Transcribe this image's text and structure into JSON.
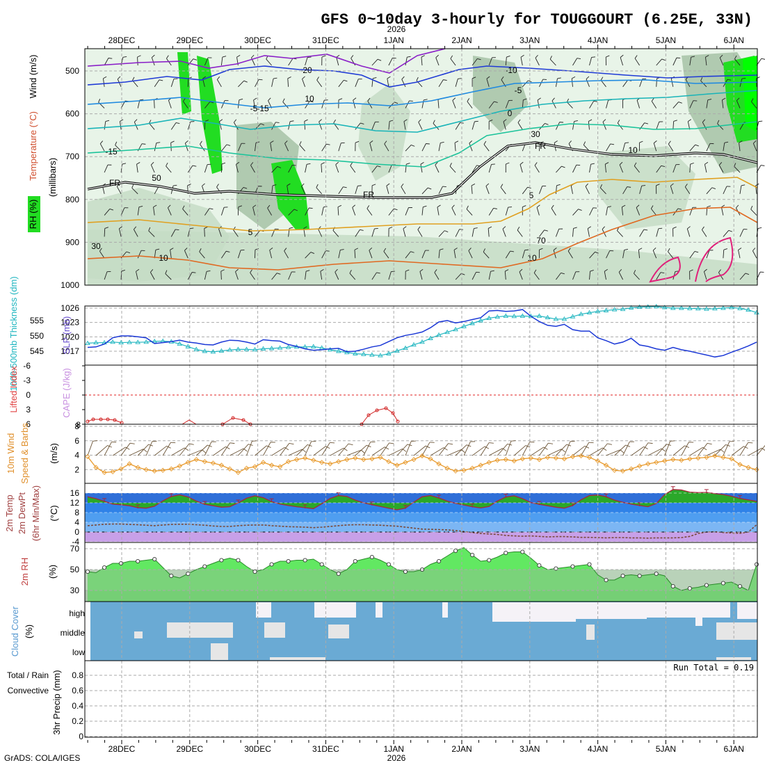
{
  "title": "GFS 0~10day 3-hourly for TOUGGOURT (6.25E, 33N)",
  "year_label": "2026",
  "footer": "GrADS: COLA/IGES",
  "colors": {
    "rh_light": "#e8f4e8",
    "rh_mid": "#c5dcc5",
    "rh_dark": "#a6c2a6",
    "rh_green": "#22dd22",
    "rh_bright": "#00ff00",
    "slp": "#1a37d6",
    "thickness": "#20b6c0",
    "wind": "#e89a2c",
    "barb": "#6b5436",
    "temp_fill": "#2aa82a",
    "temp_line": "#a8273a",
    "rh2m": "#2ee02e",
    "cloud": "#6aaad4",
    "cloud_clear": "#f5f2f7",
    "cape": "#c8a0e0",
    "li": "#d02020"
  },
  "chart_data": {
    "type": "meteogram",
    "time_axis": {
      "categories": [
        "28DEC",
        "29DEC",
        "30DEC",
        "31DEC",
        "1JAN",
        "2JAN",
        "3JAN",
        "4JAN",
        "5JAN",
        "6JAN"
      ],
      "start": "27DEC 15Z",
      "step_hours": 3,
      "points": 81
    },
    "panels": {
      "upper_air": {
        "ylabel": "(millibars)",
        "left_labels": [
          "Wind (m/s)",
          "Temperature (°C)",
          "RH (%)"
        ],
        "pressure_ticks": [
          500,
          600,
          700,
          800,
          900,
          1000
        ],
        "isotherm_labels": [
          "-20",
          "-15",
          "-10",
          "-5",
          "-15",
          "-5",
          "0",
          "5",
          "10",
          "5",
          "10"
        ],
        "freezing_label": "FR",
        "rh_labels": [
          "10",
          "30",
          "50",
          "70"
        ]
      },
      "slp_thickness": {
        "left_labels": [
          "1000-500mb Thickness (dm)",
          "SLP (mb)"
        ],
        "thickness_ticks": [
          545,
          550,
          555
        ],
        "slp_ticks": [
          1017,
          1020,
          1023,
          1026
        ],
        "slp": [
          1017.8,
          1017.9,
          1018.5,
          1019.8,
          1020.2,
          1020.2,
          1020.0,
          1019.8,
          1018.6,
          1018.8,
          1019.0,
          1019.3,
          1018.9,
          1018.7,
          1018.4,
          1018.3,
          1018.9,
          1019.3,
          1019.2,
          1018.9,
          1018.5,
          1019.4,
          1019.2,
          1019.1,
          1018.4,
          1018.0,
          1017.5,
          1017.2,
          1017.3,
          1017.5,
          1017.6,
          1016.9,
          1017.0,
          1017.4,
          1017.9,
          1018.2,
          1019.0,
          1019.8,
          1020.3,
          1020.6,
          1021.0,
          1021.9,
          1023.1,
          1023.4,
          1022.9,
          1023.2,
          1023.6,
          1024.0,
          1025.4,
          1025.5,
          1025.3,
          1025.4,
          1025.7,
          1024.3,
          1023.2,
          1022.4,
          1022.2,
          1022.6,
          1021.5,
          1021.2,
          1021.2,
          1019.8,
          1019.2,
          1018.5,
          1018.9,
          1019.7,
          1018.3,
          1018.0,
          1017.5,
          1017.2,
          1017.8,
          1017.3,
          1017.0,
          1016.6,
          1016.2,
          1015.8,
          1016.1,
          1016.8,
          1017.4,
          1018.1,
          1018.9
        ],
        "thickness": [
          547.6,
          547.8,
          547.8,
          548.0,
          547.8,
          547.9,
          547.9,
          548.0,
          548.2,
          548.3,
          548.1,
          547.4,
          546.5,
          545.6,
          545.0,
          544.8,
          545.1,
          545.4,
          545.6,
          545.6,
          545.5,
          545.8,
          545.9,
          546.1,
          546.3,
          546.4,
          546.4,
          546.5,
          546.1,
          545.5,
          545.0,
          544.6,
          544.2,
          544.0,
          543.8,
          543.6,
          544.2,
          545.1,
          546.0,
          547.1,
          548.0,
          549.2,
          550.3,
          551.2,
          552.1,
          553.1,
          554.1,
          555.0,
          555.8,
          556.2,
          556.5,
          556.4,
          556.5,
          556.4,
          556.5,
          556.0,
          555.5,
          555.5,
          556.3,
          557.1,
          557.6,
          558.0,
          558.3,
          558.6,
          558.7,
          559.2,
          559.4,
          559.5,
          559.6,
          559.3,
          559.1,
          559.1,
          559.0,
          558.9,
          558.8,
          558.9,
          559.1,
          559.3,
          559.0,
          558.5,
          557.6
        ]
      },
      "instability": {
        "left_labels": [
          "Lifted Index",
          "CAPE (J/kg)"
        ],
        "li_ticks": [
          6,
          3,
          0,
          -3,
          -6
        ],
        "cape_tick": "8"
      },
      "wind_10m": {
        "left_labels": [
          "10m Wind",
          "Speed & Barbs",
          "(m/s)"
        ],
        "ticks": [
          2,
          4,
          6,
          8
        ],
        "speed": [
          3.8,
          2.3,
          1.6,
          1.7,
          2.1,
          2.8,
          2.3,
          2.0,
          1.8,
          1.9,
          2.1,
          2.5,
          3.0,
          3.4,
          3.1,
          2.9,
          2.6,
          2.1,
          1.6,
          2.2,
          2.4,
          3.0,
          2.6,
          2.4,
          3.1,
          3.4,
          3.6,
          3.3,
          3.0,
          2.8,
          3.1,
          3.4,
          3.6,
          3.4,
          3.5,
          3.7,
          3.1,
          2.6,
          3.0,
          3.4,
          3.9,
          3.5,
          2.8,
          2.2,
          1.8,
          1.9,
          2.2,
          2.6,
          3.0,
          3.3,
          3.4,
          3.2,
          3.5,
          3.6,
          3.4,
          3.7,
          3.6,
          3.5,
          3.8,
          3.9,
          3.7,
          3.2,
          2.6,
          1.9,
          1.8,
          2.1,
          2.5,
          2.8,
          3.0,
          3.2,
          3.4,
          3.3,
          3.5,
          3.6,
          3.7,
          3.9,
          3.7,
          3.5,
          2.7,
          2.3,
          2.0
        ]
      },
      "temp_2m": {
        "left_labels": [
          "2m Temp",
          "2m DewPt",
          "(6hr Min/Max)",
          "(°C)"
        ],
        "ticks": [
          -4,
          0,
          4,
          8,
          12,
          16
        ],
        "temp": [
          14.5,
          13.7,
          12.6,
          11.5,
          11.2,
          10.8,
          10.0,
          9.8,
          10.6,
          12.8,
          14.6,
          15.3,
          14.4,
          12.7,
          11.4,
          10.8,
          10.2,
          10.4,
          12.0,
          13.9,
          14.9,
          14.1,
          12.5,
          11.5,
          10.9,
          10.4,
          10.0,
          9.6,
          11.6,
          13.8,
          15.0,
          14.6,
          13.1,
          12.0,
          11.2,
          10.5,
          9.8,
          9.1,
          9.8,
          12.3,
          14.5,
          15.0,
          14.0,
          12.7,
          11.8,
          11.1,
          10.4,
          9.9,
          10.5,
          12.7,
          14.4,
          14.9,
          13.7,
          12.1,
          11.4,
          10.8,
          10.2,
          9.8,
          10.9,
          13.3,
          15.0,
          15.2,
          14.5,
          13.1,
          12.2,
          11.5,
          10.9,
          10.4,
          11.7,
          15.4,
          17.5,
          17.3,
          16.4,
          16.2,
          16.3,
          15.8,
          15.4,
          14.7,
          13.8,
          13.2,
          12.6
        ],
        "dewpt": [
          2.6,
          2.9,
          3.2,
          3.3,
          3.3,
          3.1,
          3.0,
          2.8,
          2.6,
          2.9,
          3.1,
          3.2,
          3.2,
          3.0,
          2.8,
          2.5,
          2.3,
          2.3,
          2.6,
          2.8,
          2.9,
          2.9,
          2.6,
          2.4,
          2.2,
          2.1,
          2.0,
          1.8,
          2.0,
          2.3,
          2.6,
          2.9,
          3.0,
          3.0,
          2.9,
          2.8,
          2.6,
          2.4,
          2.0,
          1.6,
          1.2,
          1.1,
          1.0,
          0.9,
          0.6,
          0.2,
          -0.2,
          -0.6,
          -0.8,
          -1.0,
          -1.4,
          -1.6,
          -1.7,
          -1.6,
          -1.8,
          -2.0,
          -1.9,
          -1.9,
          -2.0,
          -2.2,
          -2.2,
          -2.3,
          -2.4,
          -2.3,
          -2.3,
          -2.4,
          -2.4,
          -2.5,
          -2.4,
          -2.4,
          -2.4,
          -2.3,
          -1.8,
          -0.6,
          0.0,
          0.1,
          -0.2,
          -0.4,
          -0.5,
          0.0,
          3.0
        ]
      },
      "rh_2m": {
        "left_labels": [
          "2m RH",
          "(%)"
        ],
        "ticks": [
          30,
          50,
          70
        ],
        "rh": [
          48,
          47,
          52,
          56,
          56,
          58,
          58,
          59,
          60,
          52,
          44,
          42,
          46,
          50,
          53,
          56,
          59,
          61,
          59,
          53,
          48,
          50,
          55,
          58,
          58,
          59,
          59,
          60,
          55,
          50,
          46,
          50,
          58,
          60,
          62,
          59,
          55,
          50,
          48,
          48,
          50,
          55,
          58,
          63,
          68,
          71,
          64,
          58,
          59,
          62,
          66,
          67,
          67,
          61,
          54,
          50,
          51,
          52,
          53,
          54,
          55,
          45,
          40,
          40,
          44,
          45,
          44,
          45,
          46,
          44,
          34,
          30,
          32,
          33,
          35,
          36,
          37,
          38,
          34,
          30,
          55
        ]
      },
      "cloud_cover": {
        "left_labels": [
          "Cloud Cover",
          "(%)"
        ],
        "levels": [
          "high",
          "middle",
          "low"
        ]
      },
      "precip": {
        "left_labels": [
          "Total / Rain",
          "Convective",
          "3hr Precip (mm)"
        ],
        "ticks": [
          0,
          0.2,
          0.4,
          0.6,
          0.8
        ],
        "run_total_text": "Run Total = 0.19"
      }
    }
  }
}
